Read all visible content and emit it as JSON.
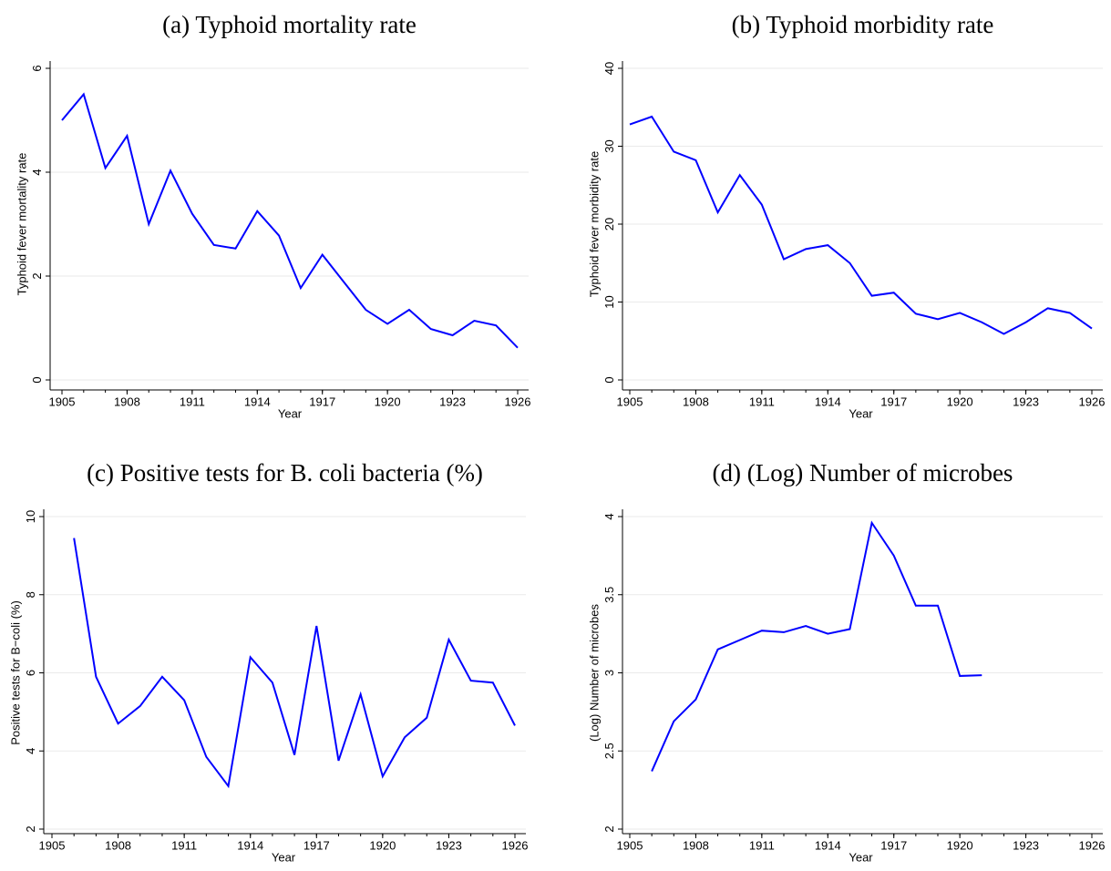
{
  "chart_data": [
    {
      "type": "line",
      "title": "(a) Typhoid mortality rate",
      "xlabel": "Year",
      "ylabel": "Typhoid fever mortality rate",
      "x": [
        1905,
        1906,
        1907,
        1908,
        1909,
        1910,
        1911,
        1912,
        1913,
        1914,
        1915,
        1916,
        1917,
        1918,
        1919,
        1920,
        1921,
        1922,
        1923,
        1924,
        1925,
        1926
      ],
      "series": [
        {
          "color": "#0000ff",
          "values": [
            5.0,
            5.5,
            4.08,
            4.7,
            3.0,
            4.03,
            3.2,
            2.6,
            2.53,
            3.25,
            2.78,
            1.77,
            2.41,
            1.88,
            1.35,
            1.08,
            1.35,
            0.98,
            0.86,
            1.14,
            1.05,
            0.62
          ]
        }
      ],
      "xlim": [
        1905,
        1926
      ],
      "xticks": [
        1905,
        1908,
        1911,
        1914,
        1917,
        1920,
        1923,
        1926
      ],
      "ylim": [
        0,
        6
      ],
      "yticks": [
        0,
        2,
        4,
        6
      ],
      "grid": true
    },
    {
      "type": "line",
      "title": "(b) Typhoid morbidity rate",
      "xlabel": "Year",
      "ylabel": "Typhoid fever morbidity rate",
      "x": [
        1905,
        1906,
        1907,
        1908,
        1909,
        1910,
        1911,
        1912,
        1913,
        1914,
        1915,
        1916,
        1917,
        1918,
        1919,
        1920,
        1921,
        1922,
        1923,
        1924,
        1925,
        1926
      ],
      "series": [
        {
          "color": "#0000ff",
          "values": [
            32.8,
            33.8,
            29.3,
            28.2,
            21.5,
            26.3,
            22.5,
            15.5,
            16.8,
            17.3,
            15.0,
            10.8,
            11.2,
            8.5,
            7.8,
            8.6,
            7.4,
            5.9,
            7.4,
            9.2,
            8.6,
            6.6
          ]
        }
      ],
      "xlim": [
        1905,
        1926
      ],
      "xticks": [
        1905,
        1908,
        1911,
        1914,
        1917,
        1920,
        1923,
        1926
      ],
      "ylim": [
        0,
        40
      ],
      "yticks": [
        0,
        10,
        20,
        30,
        40
      ],
      "grid": true
    },
    {
      "type": "line",
      "title": "(c) Positive tests for B. coli bacteria (%)",
      "xlabel": "Year",
      "ylabel": "Positive tests for B−coli (%)",
      "x": [
        1905,
        1906,
        1907,
        1908,
        1909,
        1910,
        1911,
        1912,
        1913,
        1914,
        1915,
        1916,
        1917,
        1918,
        1919,
        1920,
        1921,
        1922,
        1923,
        1924,
        1925,
        1926
      ],
      "series": [
        {
          "color": "#0000ff",
          "values": [
            null,
            9.45,
            5.9,
            4.7,
            5.15,
            5.9,
            5.3,
            3.85,
            3.1,
            6.4,
            5.75,
            3.9,
            7.2,
            3.75,
            5.45,
            3.35,
            4.35,
            4.85,
            6.85,
            5.8,
            5.75,
            4.65
          ]
        }
      ],
      "xlim": [
        1905,
        1926
      ],
      "xticks": [
        1905,
        1908,
        1911,
        1914,
        1917,
        1920,
        1923,
        1926
      ],
      "ylim": [
        2,
        10
      ],
      "yticks": [
        2,
        4,
        6,
        8,
        10
      ],
      "grid": true
    },
    {
      "type": "line",
      "title": "(d) (Log) Number of microbes",
      "xlabel": "Year",
      "ylabel": "(Log) Number of microbes",
      "x": [
        1905,
        1906,
        1907,
        1908,
        1909,
        1910,
        1911,
        1912,
        1913,
        1914,
        1915,
        1916,
        1917,
        1918,
        1919,
        1920,
        1921,
        1922,
        1923,
        1924,
        1925,
        1926
      ],
      "series": [
        {
          "color": "#0000ff",
          "values": [
            null,
            2.37,
            2.69,
            2.83,
            3.15,
            3.21,
            3.27,
            3.26,
            3.3,
            3.25,
            3.28,
            3.96,
            3.75,
            3.43,
            3.43,
            2.98,
            2.985,
            null,
            null,
            null,
            null,
            null
          ]
        }
      ],
      "xlim": [
        1905,
        1926
      ],
      "xticks": [
        1905,
        1908,
        1911,
        1914,
        1917,
        1920,
        1923,
        1926
      ],
      "ylim": [
        2,
        4
      ],
      "yticks": [
        2,
        2.5,
        3,
        3.5,
        4
      ],
      "grid": true
    }
  ]
}
